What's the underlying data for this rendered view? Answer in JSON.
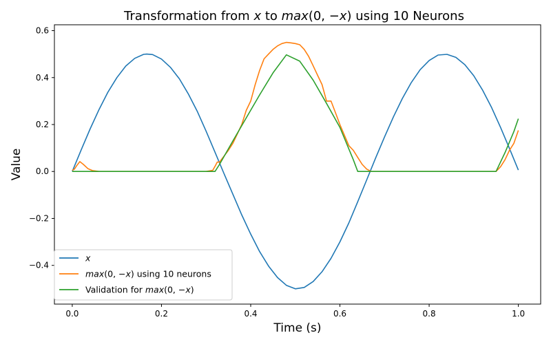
{
  "chart_data": {
    "type": "line",
    "title_parts": [
      {
        "text": "Transformation from ",
        "italic": false
      },
      {
        "text": "x",
        "italic": true
      },
      {
        "text": " to ",
        "italic": false
      },
      {
        "text": "max",
        "italic": true
      },
      {
        "text": "(0, ",
        "italic": false
      },
      {
        "text": "−x",
        "italic": true
      },
      {
        "text": ") using 10 Neurons",
        "italic": false
      }
    ],
    "xlabel": "Time (s)",
    "ylabel": "Value",
    "xlim": [
      -0.04,
      1.05
    ],
    "ylim": [
      -0.565,
      0.625
    ],
    "xticks": [
      0.0,
      0.2,
      0.4,
      0.6,
      0.8,
      1.0
    ],
    "xtick_labels": [
      "0.0",
      "0.2",
      "0.4",
      "0.6",
      "0.8",
      "1.0"
    ],
    "yticks": [
      -0.4,
      -0.2,
      0.0,
      0.2,
      0.4,
      0.6
    ],
    "ytick_labels": [
      "−0.4",
      "−0.2",
      "0.0",
      "0.2",
      "0.4",
      "0.6"
    ],
    "grid": false,
    "legend_position": "lower-left",
    "series": [
      {
        "id": "x",
        "label_parts": [
          {
            "text": "x",
            "italic": true
          }
        ],
        "color": "#1f77b4",
        "x": [
          0.0,
          0.02,
          0.04,
          0.06,
          0.08,
          0.1,
          0.12,
          0.14,
          0.16,
          0.167,
          0.18,
          0.2,
          0.22,
          0.24,
          0.26,
          0.28,
          0.3,
          0.32,
          0.34,
          0.36,
          0.38,
          0.4,
          0.42,
          0.44,
          0.46,
          0.48,
          0.5,
          0.52,
          0.54,
          0.56,
          0.58,
          0.6,
          0.62,
          0.64,
          0.66,
          0.68,
          0.7,
          0.72,
          0.74,
          0.76,
          0.78,
          0.8,
          0.82,
          0.84,
          0.86,
          0.88,
          0.9,
          0.92,
          0.94,
          0.96,
          0.98,
          1.0
        ],
        "y": [
          0.0,
          0.092,
          0.181,
          0.264,
          0.338,
          0.4,
          0.449,
          0.482,
          0.499,
          0.5,
          0.498,
          0.479,
          0.444,
          0.395,
          0.331,
          0.257,
          0.172,
          0.082,
          -0.008,
          -0.097,
          -0.185,
          -0.267,
          -0.341,
          -0.403,
          -0.452,
          -0.485,
          -0.5,
          -0.494,
          -0.469,
          -0.427,
          -0.37,
          -0.3,
          -0.219,
          -0.129,
          -0.036,
          0.057,
          0.147,
          0.233,
          0.311,
          0.379,
          0.434,
          0.473,
          0.496,
          0.499,
          0.486,
          0.455,
          0.408,
          0.346,
          0.272,
          0.188,
          0.098,
          0.006
        ]
      },
      {
        "id": "neurons",
        "label_parts": [
          {
            "text": "max",
            "italic": true
          },
          {
            "text": "(0, ",
            "italic": false
          },
          {
            "text": "−x",
            "italic": true
          },
          {
            "text": ") using 10 neurons",
            "italic": false
          }
        ],
        "color": "#ff7f0e",
        "x": [
          0.0,
          0.005,
          0.01,
          0.017,
          0.025,
          0.035,
          0.045,
          0.06,
          0.1,
          0.15,
          0.2,
          0.25,
          0.3,
          0.315,
          0.32,
          0.325,
          0.33,
          0.34,
          0.35,
          0.36,
          0.37,
          0.38,
          0.39,
          0.4,
          0.41,
          0.42,
          0.43,
          0.44,
          0.45,
          0.46,
          0.47,
          0.48,
          0.49,
          0.5,
          0.51,
          0.52,
          0.53,
          0.54,
          0.55,
          0.56,
          0.57,
          0.58,
          0.59,
          0.6,
          0.61,
          0.62,
          0.63,
          0.64,
          0.65,
          0.66,
          0.67,
          0.7,
          0.75,
          0.8,
          0.85,
          0.9,
          0.94,
          0.95,
          0.96,
          0.97,
          0.98,
          0.99,
          1.0
        ],
        "y": [
          0.005,
          0.01,
          0.025,
          0.042,
          0.03,
          0.012,
          0.004,
          0.0,
          0.0,
          0.0,
          0.0,
          0.0,
          0.0,
          0.005,
          0.022,
          0.04,
          0.04,
          0.065,
          0.09,
          0.12,
          0.16,
          0.2,
          0.26,
          0.3,
          0.37,
          0.43,
          0.48,
          0.5,
          0.52,
          0.535,
          0.545,
          0.55,
          0.548,
          0.545,
          0.54,
          0.52,
          0.49,
          0.45,
          0.41,
          0.37,
          0.3,
          0.3,
          0.25,
          0.2,
          0.155,
          0.11,
          0.09,
          0.06,
          0.03,
          0.01,
          0.0,
          0.0,
          0.0,
          0.0,
          0.0,
          0.0,
          0.0,
          0.0,
          0.02,
          0.05,
          0.09,
          0.12,
          0.175
        ]
      },
      {
        "id": "validation",
        "label_parts": [
          {
            "text": "Validation for ",
            "italic": false
          },
          {
            "text": "max",
            "italic": true
          },
          {
            "text": "(0, ",
            "italic": false
          },
          {
            "text": "−x",
            "italic": true
          },
          {
            "text": ")",
            "italic": false
          }
        ],
        "color": "#2ca02c",
        "x": [
          0.0,
          0.1,
          0.2,
          0.3,
          0.32,
          0.33,
          0.36,
          0.39,
          0.42,
          0.45,
          0.48,
          0.51,
          0.54,
          0.57,
          0.6,
          0.63,
          0.64,
          0.7,
          0.8,
          0.9,
          0.95,
          0.97,
          0.99,
          1.0
        ],
        "y": [
          0.0,
          0.0,
          0.0,
          0.0,
          0.0,
          0.03,
          0.13,
          0.228,
          0.326,
          0.42,
          0.497,
          0.47,
          0.389,
          0.29,
          0.188,
          0.05,
          0.0,
          0.0,
          0.0,
          0.0,
          0.0,
          0.08,
          0.17,
          0.225
        ]
      }
    ]
  }
}
